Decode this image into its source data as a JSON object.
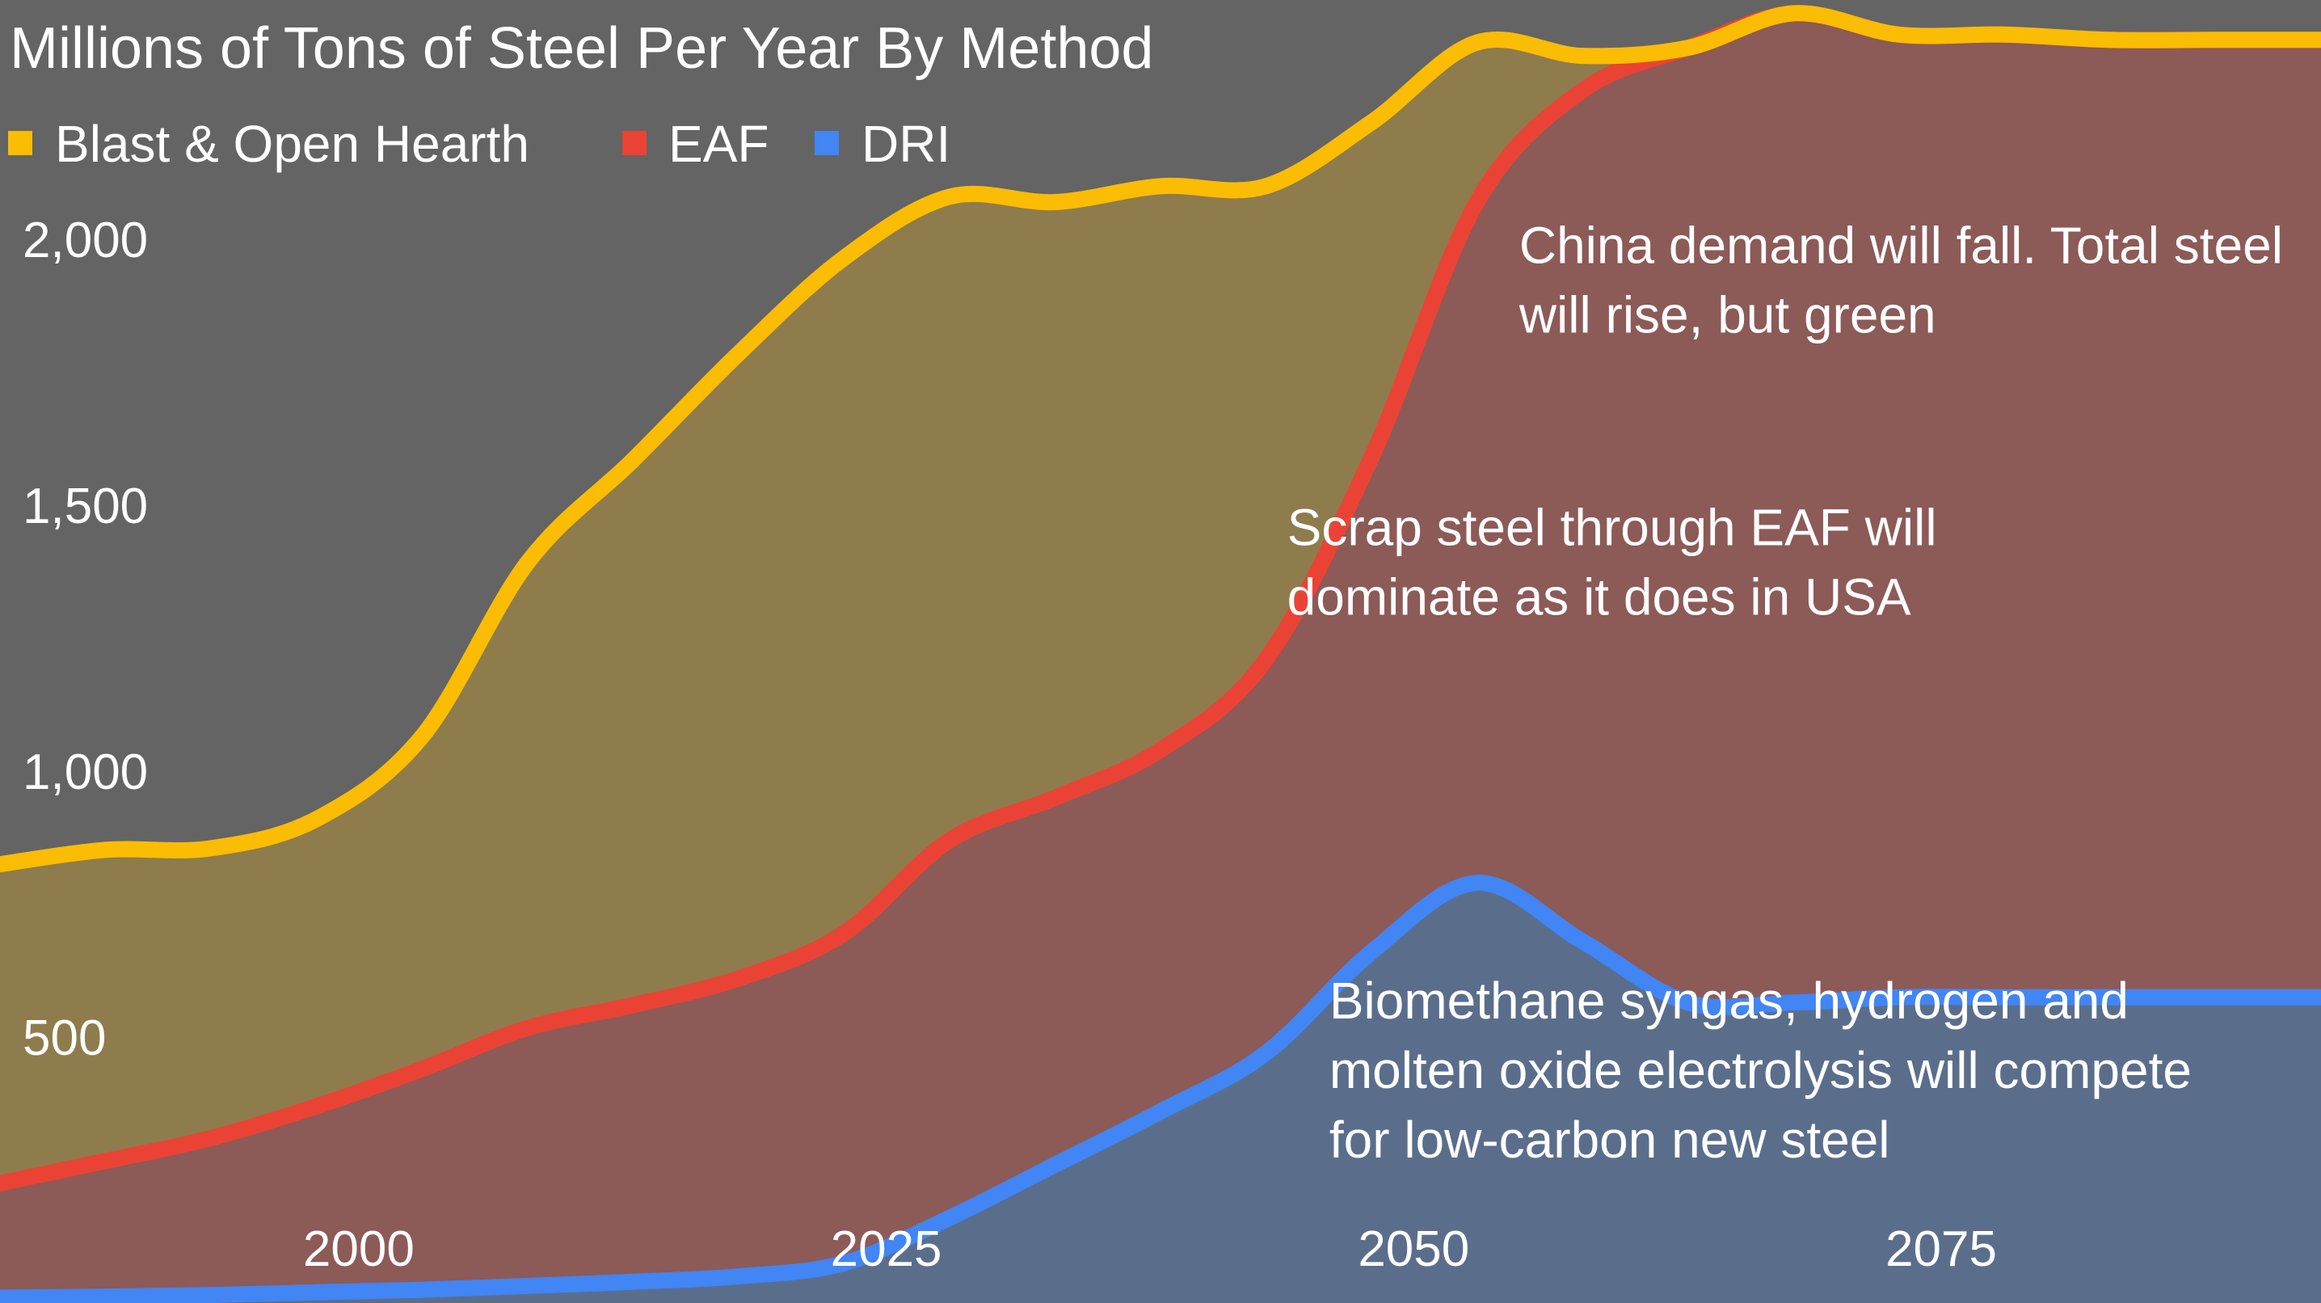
{
  "chart_data": {
    "type": "area",
    "title": "Millions of Tons of Steel Per Year By Method",
    "stacked": true,
    "legend_position": "top-left",
    "grid": false,
    "xlim": [
      1983,
      2093
    ],
    "ylim": [
      0,
      2450
    ],
    "x_ticks": [
      2000,
      2025,
      2050,
      2075
    ],
    "x_tick_labels": [
      "2000",
      "2025",
      "2050",
      "2075"
    ],
    "y_ticks": [
      500,
      1000,
      1500,
      2000
    ],
    "y_tick_labels": [
      "500",
      "1,000",
      "1,500",
      "2,000"
    ],
    "x": [
      1983,
      1988,
      1993,
      1998,
      2003,
      2008,
      2013,
      2018,
      2023,
      2028,
      2033,
      2038,
      2043,
      2048,
      2053,
      2058,
      2063,
      2068,
      2073,
      2078,
      2083,
      2088,
      2093
    ],
    "series": [
      {
        "name": "DRI",
        "color": "#4285f4",
        "fill": "#5a6e8c",
        "values": [
          10,
          12,
          15,
          20,
          25,
          32,
          40,
          50,
          75,
          160,
          260,
          360,
          470,
          660,
          790,
          680,
          565,
          565,
          575,
          575,
          575,
          575,
          575
        ]
      },
      {
        "name": "EAF",
        "color": "#ea4335",
        "fill": "#8c5a57",
        "values": [
          215,
          255,
          295,
          350,
          415,
          485,
          520,
          560,
          620,
          710,
          690,
          680,
          740,
          930,
          1280,
          1600,
          1795,
          1860,
          1810,
          1810,
          1800,
          1800,
          1800
        ]
      },
      {
        "name": "Blast & Open Hearth",
        "color": "#fbbc04",
        "fill": "#8e7c4d",
        "values": [
          600,
          585,
          545,
          540,
          625,
          875,
          1025,
          1175,
          1270,
          1210,
          1120,
          1060,
          890,
          630,
          300,
          65,
          0,
          0,
          0,
          0,
          0,
          0,
          0
        ]
      }
    ],
    "annotations": [
      {
        "x": 2055,
        "y": 1955,
        "lines": [
          "China demand will fall. Total steel",
          "will rise, but green"
        ]
      },
      {
        "x": 2044,
        "y": 1425,
        "lines": [
          "Scrap steel through EAF will",
          "dominate as it does in USA"
        ]
      },
      {
        "x": 2046,
        "y": 535,
        "lines": [
          "Biomethane syngas, hydrogen and",
          "molten oxide electrolysis will compete",
          "for low-carbon new steel"
        ]
      }
    ]
  }
}
